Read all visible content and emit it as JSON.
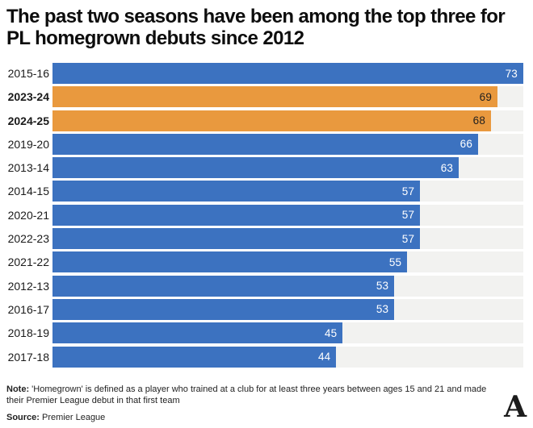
{
  "title": "The past two seasons have been among the top three for PL homegrown debuts since 2012",
  "chart_data": {
    "type": "bar",
    "orientation": "horizontal",
    "title": "The past two seasons have been among the top three for PL homegrown debuts since 2012",
    "categories": [
      "2015-16",
      "2023-24",
      "2024-25",
      "2019-20",
      "2013-14",
      "2014-15",
      "2020-21",
      "2022-23",
      "2021-22",
      "2012-13",
      "2016-17",
      "2018-19",
      "2017-18"
    ],
    "values": [
      73,
      69,
      68,
      66,
      63,
      57,
      57,
      57,
      55,
      53,
      53,
      45,
      44
    ],
    "highlighted_categories": [
      "2023-24",
      "2024-25"
    ],
    "xlim": [
      0,
      73
    ],
    "value_labels_shown": true,
    "grid": false,
    "legend": "none",
    "colors": {
      "bar_default": "#3c72c0",
      "bar_highlight": "#e9993e",
      "track": "#f2f2f0",
      "value_on_default": "#ffffff",
      "value_on_highlight": "#1f1f1f"
    }
  },
  "footer": {
    "note_label": "Note:",
    "note_text": " 'Homegrown' is defined as a player who trained at a club for at least three years between ages 15 and 21 and made their Premier League debut in that first team",
    "source_label": "Source:",
    "source_text": " Premier League",
    "logo_glyph": "A"
  }
}
